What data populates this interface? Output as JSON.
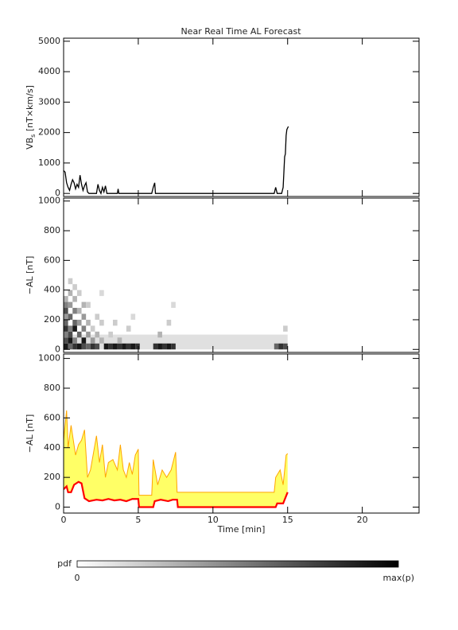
{
  "chart_data": [
    {
      "type": "line",
      "title": "Near Real Time AL Forecast",
      "ylabel": {
        "main": "VB",
        "sub": "s",
        "unit": " [nT×km/s]"
      },
      "xlim": [
        0,
        23.8
      ],
      "xticks": [
        0,
        5,
        10,
        15,
        20
      ],
      "show_xtick_labels": false,
      "ylim": [
        -100,
        5100
      ],
      "yticks": [
        0,
        1000,
        2000,
        3000,
        4000,
        5000
      ],
      "color": "#000000",
      "x": [
        0,
        0.1,
        0.2,
        0.3,
        0.4,
        0.5,
        0.6,
        0.7,
        0.8,
        0.9,
        1.0,
        1.1,
        1.2,
        1.3,
        1.4,
        1.5,
        1.6,
        1.7,
        2.2,
        2.3,
        2.4,
        2.5,
        2.6,
        2.7,
        2.8,
        2.9,
        3.6,
        3.65,
        3.7,
        5.9,
        6.0,
        6.1,
        6.15,
        14.1,
        14.2,
        14.3,
        14.6,
        14.7,
        14.8,
        14.85,
        14.9,
        14.95,
        15.0,
        15.05
      ],
      "values": [
        750,
        700,
        350,
        200,
        100,
        300,
        450,
        350,
        150,
        300,
        200,
        600,
        300,
        100,
        250,
        350,
        50,
        0,
        0,
        300,
        100,
        0,
        200,
        50,
        250,
        0,
        0,
        150,
        0,
        0,
        200,
        350,
        0,
        0,
        200,
        0,
        0,
        200,
        1200,
        1300,
        1900,
        2100,
        2150,
        2200
      ]
    },
    {
      "type": "heatmap",
      "ylabel": "−AL [nT]",
      "xlim": [
        0,
        23.8
      ],
      "xticks": [
        0,
        5,
        10,
        15,
        20
      ],
      "show_xtick_labels": false,
      "ylim": [
        -20,
        1020
      ],
      "yticks": [
        0,
        200,
        400,
        600,
        800,
        1000
      ],
      "cell_width": 0.3,
      "cell_height": 40,
      "floor": {
        "x": [
          0,
          15
        ],
        "y": [
          0,
          100
        ],
        "z": 0.12
      },
      "cells": {
        "x": [
          0,
          0,
          0,
          0,
          0,
          0,
          0,
          0,
          0,
          0.3,
          0.3,
          0.3,
          0.3,
          0.3,
          0.3,
          0.3,
          0.3,
          0.6,
          0.6,
          0.6,
          0.6,
          0.6,
          0.6,
          0.6,
          0.9,
          0.9,
          0.9,
          0.9,
          0.9,
          1.2,
          1.2,
          1.2,
          1.2,
          1.2,
          1.5,
          1.5,
          1.5,
          1.5,
          1.8,
          1.8,
          1.8,
          2.1,
          2.1,
          2.1,
          2.4,
          2.4,
          2.4,
          2.7,
          3.0,
          3.3,
          3.6,
          3.9,
          4.2,
          4.5,
          4.8,
          3.0,
          3.3,
          3.6,
          4.2,
          4.5,
          6.0,
          6.3,
          6.6,
          6.9,
          7.2,
          6.3,
          6.9,
          7.2,
          14.1,
          14.4,
          14.7,
          14.7
        ],
        "y": [
          0,
          40,
          80,
          120,
          160,
          200,
          240,
          280,
          320,
          0,
          40,
          80,
          120,
          200,
          280,
          360,
          440,
          0,
          40,
          120,
          160,
          240,
          320,
          400,
          0,
          80,
          160,
          240,
          360,
          0,
          40,
          120,
          200,
          280,
          0,
          80,
          160,
          280,
          0,
          40,
          120,
          0,
          80,
          200,
          40,
          160,
          360,
          0,
          0,
          0,
          0,
          0,
          0,
          0,
          0,
          80,
          160,
          40,
          120,
          200,
          0,
          0,
          0,
          0,
          0,
          80,
          160,
          280,
          0,
          0,
          0,
          120
        ],
        "z": [
          0.9,
          0.7,
          0.5,
          0.8,
          0.6,
          0.4,
          0.7,
          0.5,
          0.3,
          0.6,
          0.9,
          0.7,
          0.5,
          0.6,
          0.4,
          0.3,
          0.2,
          0.8,
          0.5,
          0.9,
          0.6,
          0.5,
          0.3,
          0.2,
          0.9,
          0.6,
          0.4,
          0.3,
          0.2,
          0.7,
          0.9,
          0.5,
          0.4,
          0.3,
          0.6,
          0.4,
          0.3,
          0.2,
          0.8,
          0.4,
          0.2,
          0.7,
          0.3,
          0.2,
          0.3,
          0.2,
          0.15,
          0.9,
          0.8,
          0.9,
          0.8,
          0.9,
          0.8,
          0.9,
          0.8,
          0.2,
          0.2,
          0.3,
          0.2,
          0.15,
          0.8,
          0.9,
          0.8,
          0.9,
          0.8,
          0.3,
          0.2,
          0.15,
          0.6,
          0.8,
          0.7,
          0.2
        ]
      },
      "colorbar": {
        "label": "pdf",
        "min": 0,
        "max_label": "max(p)"
      }
    },
    {
      "type": "area",
      "ylabel": "−AL [nT]",
      "xlabel": "Time [min]",
      "xlim": [
        0,
        23.8
      ],
      "xticks": [
        0,
        5,
        10,
        15,
        20
      ],
      "show_xtick_labels": true,
      "ylim": [
        -40,
        1030
      ],
      "yticks": [
        0,
        200,
        400,
        600,
        800,
        1000
      ],
      "fill": "#ffff66",
      "series": [
        {
          "color": "#ff0000",
          "x": [
            0,
            0.2,
            0.3,
            0.5,
            0.7,
            1.0,
            1.2,
            1.4,
            1.7,
            2.2,
            2.6,
            3.0,
            3.4,
            3.8,
            4.2,
            4.6,
            5.0,
            5.05,
            6.0,
            6.1,
            6.5,
            7.0,
            7.3,
            7.6,
            7.65,
            14.2,
            14.3,
            14.7,
            15.0
          ],
          "values": [
            120,
            140,
            100,
            100,
            150,
            170,
            160,
            60,
            40,
            50,
            45,
            55,
            45,
            50,
            40,
            55,
            55,
            0,
            0,
            40,
            50,
            40,
            50,
            50,
            0,
            0,
            25,
            25,
            100
          ]
        },
        {
          "color": "#ffa500",
          "x": [
            0,
            0.2,
            0.3,
            0.5,
            0.8,
            1.0,
            1.2,
            1.4,
            1.6,
            1.8,
            2.2,
            2.4,
            2.6,
            2.8,
            3.0,
            3.3,
            3.6,
            3.8,
            4.0,
            4.2,
            4.4,
            4.6,
            4.8,
            5.0,
            5.05,
            5.9,
            6.0,
            6.3,
            6.6,
            6.9,
            7.2,
            7.5,
            7.6,
            14.1,
            14.2,
            14.5,
            14.7,
            14.9,
            15.0
          ],
          "values": [
            450,
            650,
            400,
            550,
            350,
            420,
            450,
            520,
            200,
            250,
            480,
            300,
            420,
            200,
            300,
            320,
            250,
            420,
            250,
            200,
            300,
            220,
            350,
            390,
            80,
            80,
            320,
            150,
            250,
            200,
            250,
            370,
            100,
            100,
            200,
            250,
            150,
            350,
            360
          ]
        }
      ]
    }
  ]
}
